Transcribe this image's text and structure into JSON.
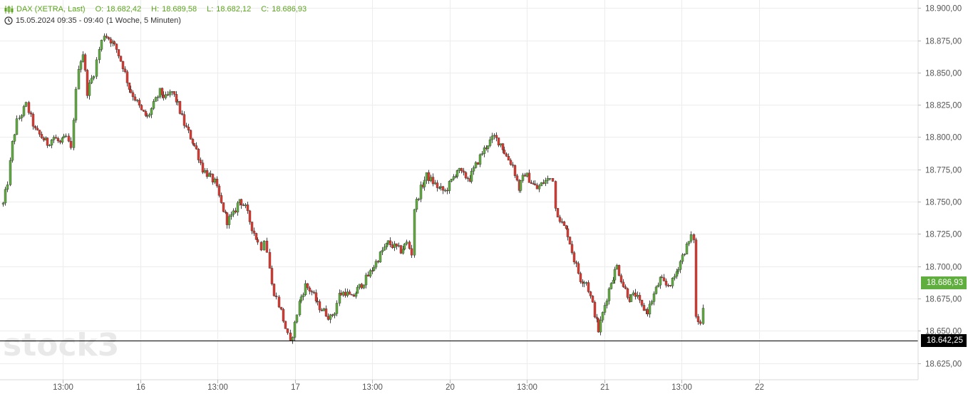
{
  "header": {
    "instrument": "DAX (XETRA, Last)",
    "open_label": "O:",
    "open": "18.682,42",
    "high_label": "H:",
    "high": "18.689,58",
    "low_label": "L:",
    "low": "18.682,12",
    "close_label": "C:",
    "close": "18.686,93",
    "range": "15.05.2024 09:35 - 09:40",
    "interval": "(1 Woche, 5 Minuten)"
  },
  "watermark": "stock3",
  "last_price_tag": "18.686,93",
  "reference_tag": "18.642,25",
  "colors": {
    "up": "#5fae3e",
    "down": "#e03a2f",
    "header_green": "#5aa51b",
    "grid": "#ececec",
    "axis_text": "#555555"
  },
  "chart_data": {
    "type": "candlestick",
    "y_ticks": [
      "18.625,00",
      "18.650,00",
      "18.675,00",
      "18.700,00",
      "18.725,00",
      "18.750,00",
      "18.775,00",
      "18.800,00",
      "18.825,00",
      "18.850,00",
      "18.875,00",
      "18.900,00"
    ],
    "y_tick_values": [
      18625,
      18650,
      18675,
      18700,
      18725,
      18750,
      18775,
      18800,
      18825,
      18850,
      18875,
      18900
    ],
    "ylim": [
      18610,
      18910
    ],
    "x_ticks": [
      "13:00",
      "16",
      "13:00",
      "17",
      "13:00",
      "20",
      "13:00",
      "21",
      "13:00",
      "22"
    ],
    "reference_line": 18642.25,
    "last_price": 18686.93,
    "close_path": [
      [
        0.0,
        18748
      ],
      [
        0.6,
        18765
      ],
      [
        1.2,
        18795
      ],
      [
        1.8,
        18812
      ],
      [
        2.4,
        18818
      ],
      [
        3.0,
        18825
      ],
      [
        3.6,
        18815
      ],
      [
        4.2,
        18805
      ],
      [
        5.0,
        18800
      ],
      [
        5.8,
        18795
      ],
      [
        6.6,
        18800
      ],
      [
        7.4,
        18795
      ],
      [
        8.2,
        18800
      ],
      [
        8.8,
        18790
      ],
      [
        9.2,
        18815
      ],
      [
        9.8,
        18855
      ],
      [
        10.4,
        18865
      ],
      [
        11.0,
        18835
      ],
      [
        11.8,
        18850
      ],
      [
        12.5,
        18868
      ],
      [
        13.2,
        18880
      ],
      [
        14.0,
        18875
      ],
      [
        14.8,
        18868
      ],
      [
        15.6,
        18855
      ],
      [
        16.4,
        18838
      ],
      [
        17.2,
        18830
      ],
      [
        18.0,
        18820
      ],
      [
        18.8,
        18815
      ],
      [
        19.6,
        18825
      ],
      [
        20.4,
        18835
      ],
      [
        21.2,
        18830
      ],
      [
        22.0,
        18835
      ],
      [
        22.8,
        18825
      ],
      [
        23.6,
        18810
      ],
      [
        24.4,
        18800
      ],
      [
        25.2,
        18790
      ],
      [
        26.0,
        18775
      ],
      [
        26.8,
        18770
      ],
      [
        27.6,
        18765
      ],
      [
        28.4,
        18748
      ],
      [
        29.2,
        18735
      ],
      [
        30.0,
        18740
      ],
      [
        30.8,
        18752
      ],
      [
        31.6,
        18745
      ],
      [
        32.4,
        18730
      ],
      [
        33.2,
        18718
      ],
      [
        33.6,
        18715
      ],
      [
        34.0,
        18722
      ],
      [
        34.4,
        18712
      ],
      [
        35.0,
        18685
      ],
      [
        35.6,
        18675
      ],
      [
        36.2,
        18665
      ],
      [
        36.8,
        18652
      ],
      [
        37.4,
        18640
      ],
      [
        38.0,
        18655
      ],
      [
        38.6,
        18672
      ],
      [
        39.4,
        18685
      ],
      [
        40.2,
        18680
      ],
      [
        41.0,
        18670
      ],
      [
        41.8,
        18665
      ],
      [
        42.6,
        18660
      ],
      [
        43.2,
        18665
      ],
      [
        43.8,
        18678
      ],
      [
        44.6,
        18680
      ],
      [
        45.4,
        18675
      ],
      [
        46.2,
        18682
      ],
      [
        47.0,
        18688
      ],
      [
        47.8,
        18695
      ],
      [
        48.6,
        18703
      ],
      [
        49.4,
        18712
      ],
      [
        50.2,
        18718
      ],
      [
        51.0,
        18715
      ],
      [
        51.8,
        18712
      ],
      [
        52.6,
        18718
      ],
      [
        53.2,
        18710
      ],
      [
        53.6,
        18745
      ],
      [
        54.4,
        18760
      ],
      [
        55.2,
        18770
      ],
      [
        56.0,
        18765
      ],
      [
        56.8,
        18760
      ],
      [
        57.6,
        18758
      ],
      [
        58.4,
        18766
      ],
      [
        59.2,
        18775
      ],
      [
        60.0,
        18770
      ],
      [
        60.8,
        18768
      ],
      [
        61.6,
        18778
      ],
      [
        62.4,
        18788
      ],
      [
        63.2,
        18795
      ],
      [
        64.0,
        18800
      ],
      [
        64.8,
        18795
      ],
      [
        65.6,
        18785
      ],
      [
        66.4,
        18778
      ],
      [
        67.2,
        18760
      ],
      [
        68.0,
        18772
      ],
      [
        68.8,
        18765
      ],
      [
        69.6,
        18760
      ],
      [
        70.4,
        18765
      ],
      [
        71.2,
        18768
      ],
      [
        71.6,
        18768
      ],
      [
        72.0,
        18745
      ],
      [
        72.8,
        18733
      ],
      [
        73.6,
        18725
      ],
      [
        74.4,
        18705
      ],
      [
        75.2,
        18690
      ],
      [
        76.0,
        18688
      ],
      [
        76.8,
        18670
      ],
      [
        77.6,
        18650
      ],
      [
        78.4,
        18670
      ],
      [
        79.2,
        18688
      ],
      [
        80.0,
        18700
      ],
      [
        80.8,
        18685
      ],
      [
        81.6,
        18675
      ],
      [
        82.4,
        18678
      ],
      [
        83.2,
        18668
      ],
      [
        84.0,
        18665
      ],
      [
        84.8,
        18678
      ],
      [
        85.6,
        18690
      ],
      [
        86.4,
        18685
      ],
      [
        87.2,
        18688
      ],
      [
        88.0,
        18700
      ],
      [
        88.8,
        18712
      ],
      [
        89.6,
        18722
      ],
      [
        90.0,
        18722
      ],
      [
        90.3,
        18660
      ],
      [
        90.8,
        18655
      ],
      [
        91.2,
        18670
      ],
      [
        91.6,
        18688
      ]
    ],
    "x_range": [
      0,
      120
    ]
  }
}
